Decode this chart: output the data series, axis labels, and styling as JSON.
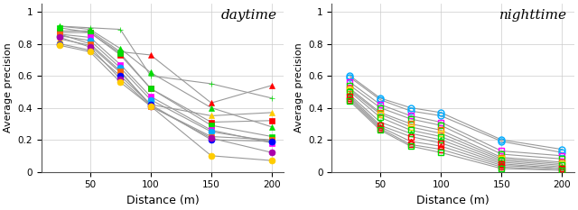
{
  "daytime": {
    "x": [
      25,
      50,
      75,
      100,
      150,
      200
    ],
    "series": [
      {
        "color": "#00dd00",
        "marker": "+",
        "filled": true,
        "y": [
          0.91,
          0.9,
          0.89,
          0.6,
          0.55,
          0.46
        ]
      },
      {
        "color": "#ff0000",
        "marker": "^",
        "filled": true,
        "y": [
          0.88,
          0.88,
          0.75,
          0.73,
          0.43,
          0.54
        ]
      },
      {
        "color": "#ff0000",
        "marker": "s",
        "filled": true,
        "y": [
          0.87,
          0.87,
          0.73,
          0.52,
          0.31,
          0.32
        ]
      },
      {
        "color": "#00dd00",
        "marker": "^",
        "filled": true,
        "y": [
          0.91,
          0.89,
          0.77,
          0.62,
          0.4,
          0.28
        ]
      },
      {
        "color": "#00dd00",
        "marker": "s",
        "filled": true,
        "y": [
          0.9,
          0.87,
          0.74,
          0.52,
          0.29,
          0.22
        ]
      },
      {
        "color": "#ff00ff",
        "marker": "s",
        "filled": true,
        "y": [
          0.86,
          0.84,
          0.67,
          0.47,
          0.26,
          0.18
        ]
      },
      {
        "color": "#00aaff",
        "marker": "o",
        "filled": true,
        "y": [
          0.85,
          0.82,
          0.65,
          0.45,
          0.25,
          0.19
        ]
      },
      {
        "color": "#ffcc00",
        "marker": "^",
        "filled": true,
        "y": [
          0.83,
          0.79,
          0.62,
          0.42,
          0.35,
          0.37
        ]
      },
      {
        "color": "#ff6600",
        "marker": "s",
        "filled": true,
        "y": [
          0.86,
          0.8,
          0.63,
          0.41,
          0.22,
          0.2
        ]
      },
      {
        "color": "#0000ff",
        "marker": "o",
        "filled": true,
        "y": [
          0.8,
          0.76,
          0.6,
          0.42,
          0.2,
          0.19
        ]
      },
      {
        "color": "#aa00aa",
        "marker": "o",
        "filled": true,
        "y": [
          0.84,
          0.78,
          0.58,
          0.41,
          0.21,
          0.12
        ]
      },
      {
        "color": "#ffcc00",
        "marker": "o",
        "filled": true,
        "y": [
          0.79,
          0.75,
          0.56,
          0.41,
          0.1,
          0.07
        ]
      }
    ],
    "title": "daytime",
    "xlabel": "Distance (m)",
    "ylabel": "Average precision",
    "xlim": [
      10,
      210
    ],
    "ylim": [
      0,
      1.05
    ],
    "xticks": [
      50,
      100,
      150,
      200
    ],
    "yticks": [
      0,
      0.2,
      0.4,
      0.6,
      0.8,
      1
    ],
    "yticklabels": [
      "0",
      "0.2",
      "0.4",
      "0.6",
      "0.8",
      "1"
    ]
  },
  "nighttime": {
    "x": [
      25,
      50,
      75,
      100,
      150,
      200
    ],
    "series": [
      {
        "color": "#00aaff",
        "marker": "o",
        "filled": false,
        "y": [
          0.6,
          0.46,
          0.4,
          0.37,
          0.2,
          0.14
        ]
      },
      {
        "color": "#00aaff",
        "marker": "o",
        "filled": false,
        "y": [
          0.59,
          0.45,
          0.38,
          0.35,
          0.19,
          0.12
        ]
      },
      {
        "color": "#ff00ff",
        "marker": "s",
        "filled": false,
        "y": [
          0.56,
          0.42,
          0.35,
          0.31,
          0.13,
          0.1
        ]
      },
      {
        "color": "#00dd00",
        "marker": "s",
        "filled": false,
        "y": [
          0.54,
          0.4,
          0.33,
          0.29,
          0.11,
          0.08
        ]
      },
      {
        "color": "#ff6600",
        "marker": "s",
        "filled": false,
        "y": [
          0.52,
          0.37,
          0.3,
          0.26,
          0.09,
          0.06
        ]
      },
      {
        "color": "#ffcc00",
        "marker": "s",
        "filled": false,
        "y": [
          0.51,
          0.36,
          0.28,
          0.24,
          0.08,
          0.05
        ]
      },
      {
        "color": "#00dd00",
        "marker": "s",
        "filled": false,
        "y": [
          0.5,
          0.34,
          0.26,
          0.22,
          0.07,
          0.04
        ]
      },
      {
        "color": "#00dd00",
        "marker": "^",
        "filled": false,
        "y": [
          0.48,
          0.31,
          0.24,
          0.2,
          0.06,
          0.03
        ]
      },
      {
        "color": "#ff0000",
        "marker": "s",
        "filled": false,
        "y": [
          0.47,
          0.29,
          0.22,
          0.18,
          0.05,
          0.02
        ]
      },
      {
        "color": "#ff0000",
        "marker": "^",
        "filled": false,
        "y": [
          0.46,
          0.28,
          0.19,
          0.16,
          0.04,
          0.02
        ]
      },
      {
        "color": "#ff0000",
        "marker": "s",
        "filled": false,
        "y": [
          0.45,
          0.27,
          0.17,
          0.14,
          0.03,
          0.01
        ]
      },
      {
        "color": "#00dd00",
        "marker": "s",
        "filled": false,
        "y": [
          0.44,
          0.26,
          0.16,
          0.12,
          0.02,
          0.01
        ]
      }
    ],
    "title": "nighttime",
    "xlabel": "Distance (m)",
    "ylabel": "Average precision",
    "xlim": [
      10,
      210
    ],
    "ylim": [
      0,
      1.05
    ],
    "xticks": [
      50,
      100,
      150,
      200
    ],
    "yticks": [
      0,
      0.2,
      0.4,
      0.6,
      0.8,
      1
    ],
    "yticklabels": [
      "0",
      "0.2",
      "0.4",
      "0.6",
      "0.8",
      "1"
    ]
  },
  "line_color": "#999999",
  "line_width": 0.8,
  "marker_size": 5,
  "fig_width": 6.4,
  "fig_height": 2.33,
  "dpi": 100
}
